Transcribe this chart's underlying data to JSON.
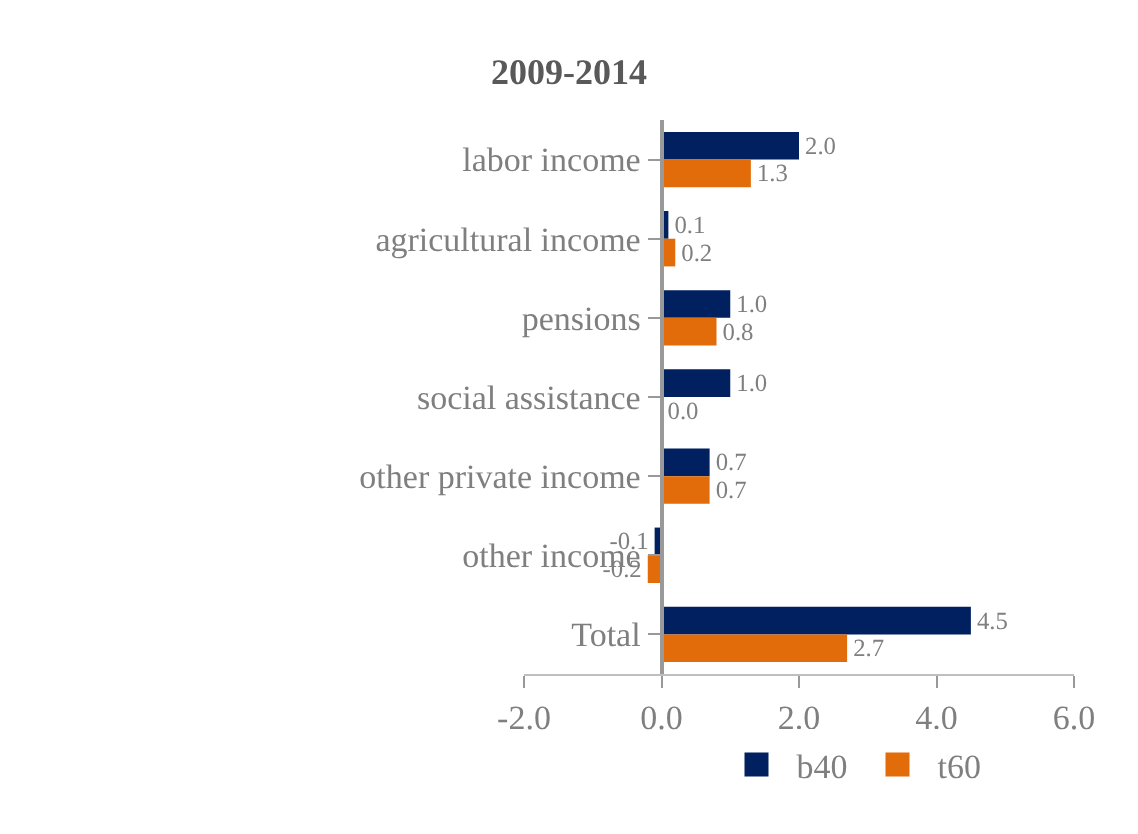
{
  "chart_data": {
    "type": "bar",
    "orientation": "horizontal",
    "title": "2009-2014",
    "categories": [
      "labor income",
      "agricultural income",
      "pensions",
      "social assistance",
      "other private income",
      "other income",
      "Total"
    ],
    "series": [
      {
        "name": "b40",
        "color": "#002060",
        "values": [
          2.0,
          0.1,
          1.0,
          1.0,
          0.7,
          -0.1,
          4.5
        ],
        "value_labels": [
          "2.0",
          "0.1",
          "1.0",
          "1.0",
          "0.7",
          "-0.1",
          "4.5"
        ]
      },
      {
        "name": "t60",
        "color": "#e36c0a",
        "values": [
          1.3,
          0.2,
          0.8,
          0.0,
          0.7,
          -0.2,
          2.7
        ],
        "value_labels": [
          "1.3",
          "0.2",
          "0.8",
          "0.0",
          "0.7",
          "-0.2",
          "2.7"
        ]
      }
    ],
    "xlim": [
      -2,
      6
    ],
    "xticks": [
      {
        "value": -2,
        "label": "-2.0"
      },
      {
        "value": 0,
        "label": "0.0"
      },
      {
        "value": 2,
        "label": "2.0"
      },
      {
        "value": 4,
        "label": "4.0"
      },
      {
        "value": 6,
        "label": "6.0"
      }
    ],
    "legend": "bottom"
  }
}
